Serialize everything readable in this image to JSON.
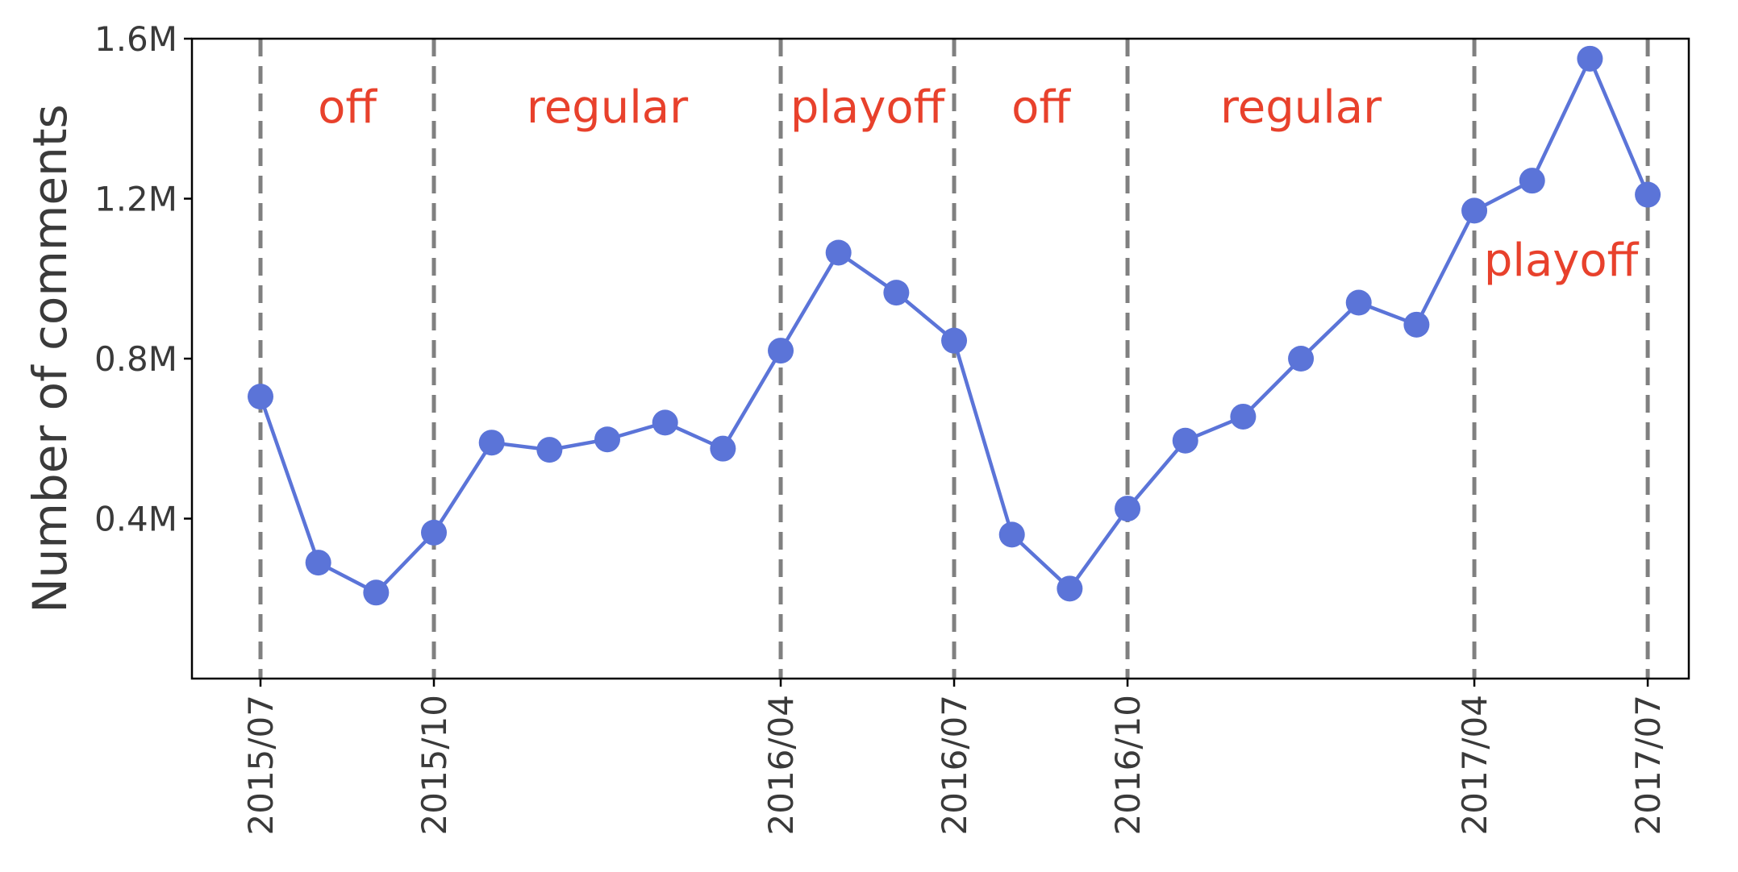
{
  "chart_data": {
    "type": "line",
    "ylabel": "Number of comments",
    "ylim": [
      0,
      1600000
    ],
    "yticks": [
      {
        "value": 400000,
        "label": "0.4M"
      },
      {
        "value": 800000,
        "label": "0.8M"
      },
      {
        "value": 1200000,
        "label": "1.2M"
      },
      {
        "value": 1600000,
        "label": "1.6M"
      }
    ],
    "x": [
      "2015/07",
      "2015/08",
      "2015/09",
      "2015/10",
      "2015/11",
      "2015/12",
      "2016/01",
      "2016/02",
      "2016/03",
      "2016/04",
      "2016/05",
      "2016/06",
      "2016/07",
      "2016/08",
      "2016/09",
      "2016/10",
      "2016/11",
      "2016/12",
      "2017/01",
      "2017/02",
      "2017/03",
      "2017/04",
      "2017/05",
      "2017/06",
      "2017/07"
    ],
    "xticks": [
      "2015/07",
      "2015/10",
      "2016/04",
      "2016/07",
      "2016/10",
      "2017/04",
      "2017/07"
    ],
    "series": [
      {
        "color": "#5b74d8",
        "values": [
          705000,
          290000,
          215000,
          365000,
          590000,
          572000,
          598000,
          640000,
          575000,
          820000,
          1065000,
          965000,
          845000,
          360000,
          225000,
          425000,
          595000,
          655000,
          800000,
          940000,
          885000,
          1170000,
          1245000,
          1550000,
          1210000
        ]
      }
    ],
    "vlines": [
      "2015/07",
      "2015/10",
      "2016/04",
      "2016/07",
      "2016/10",
      "2017/04",
      "2017/07"
    ],
    "phases": [
      {
        "label": "off",
        "start": "2015/07",
        "end": "2015/10",
        "position": "top"
      },
      {
        "label": "regular",
        "start": "2015/10",
        "end": "2016/04",
        "position": "top"
      },
      {
        "label": "playoff",
        "start": "2016/04",
        "end": "2016/07",
        "position": "top"
      },
      {
        "label": "off",
        "start": "2016/07",
        "end": "2016/10",
        "position": "top"
      },
      {
        "label": "regular",
        "start": "2016/10",
        "end": "2017/04",
        "position": "top"
      },
      {
        "label": "playoff",
        "start": "2017/04",
        "end": "2017/07",
        "position": "middle"
      }
    ],
    "colors": {
      "line": "#5b74d8",
      "phase_label": "#e8412c",
      "vline": "#808080",
      "axis": "#000000",
      "text": "#3a3a3a"
    },
    "grid": false
  }
}
